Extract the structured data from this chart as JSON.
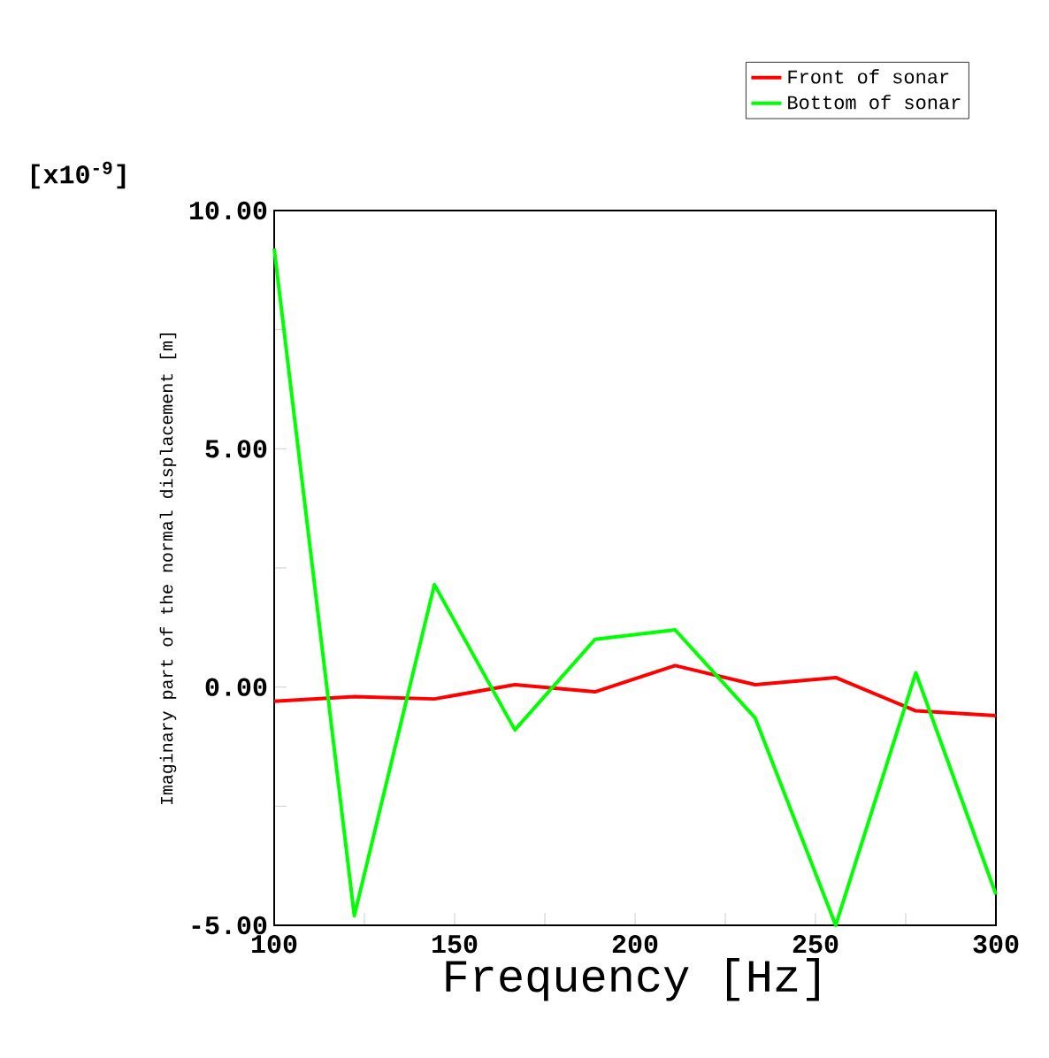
{
  "chart_data": {
    "type": "line",
    "xlabel": "Frequency [Hz]",
    "ylabel": "Imaginary part of the normal displacement [m]",
    "annotations": [
      "[x10$^{-9}$]"
    ],
    "x": [
      100,
      122.2,
      144.4,
      166.7,
      188.9,
      211.1,
      233.3,
      255.6,
      277.8,
      300
    ],
    "series": [
      {
        "name": "Front of sonar",
        "color": "#ff0000",
        "values": [
          -0.3,
          -0.2,
          -0.25,
          0.05,
          -0.1,
          0.45,
          0.05,
          0.2,
          -0.5,
          -0.6
        ]
      },
      {
        "name": "Bottom of sonar",
        "color": "#00ff00",
        "values": [
          9.2,
          -4.8,
          2.15,
          -0.9,
          1.0,
          1.2,
          -0.65,
          -5.0,
          0.3,
          -4.35
        ]
      }
    ],
    "xlim": [
      100,
      300
    ],
    "ylim": [
      -5,
      10
    ],
    "xticks": [
      100,
      {
        "value": 125,
        "label": null
      },
      150,
      {
        "value": 175,
        "label": null
      },
      200,
      {
        "value": 225,
        "label": null
      },
      250,
      {
        "value": 275,
        "label": null
      },
      300
    ],
    "yticks": [
      {
        "value": -5,
        "label": "-5.00"
      },
      {
        "value": -2.5,
        "label": null
      },
      {
        "value": 0,
        "label": "0.00"
      },
      {
        "value": 2.5,
        "label": null
      },
      {
        "value": 5,
        "label": "5.00"
      },
      {
        "value": 7.5,
        "label": null
      },
      {
        "value": 10,
        "label": "10.00"
      }
    ],
    "legend": "top right",
    "line_style": "solid",
    "marker": "none"
  }
}
